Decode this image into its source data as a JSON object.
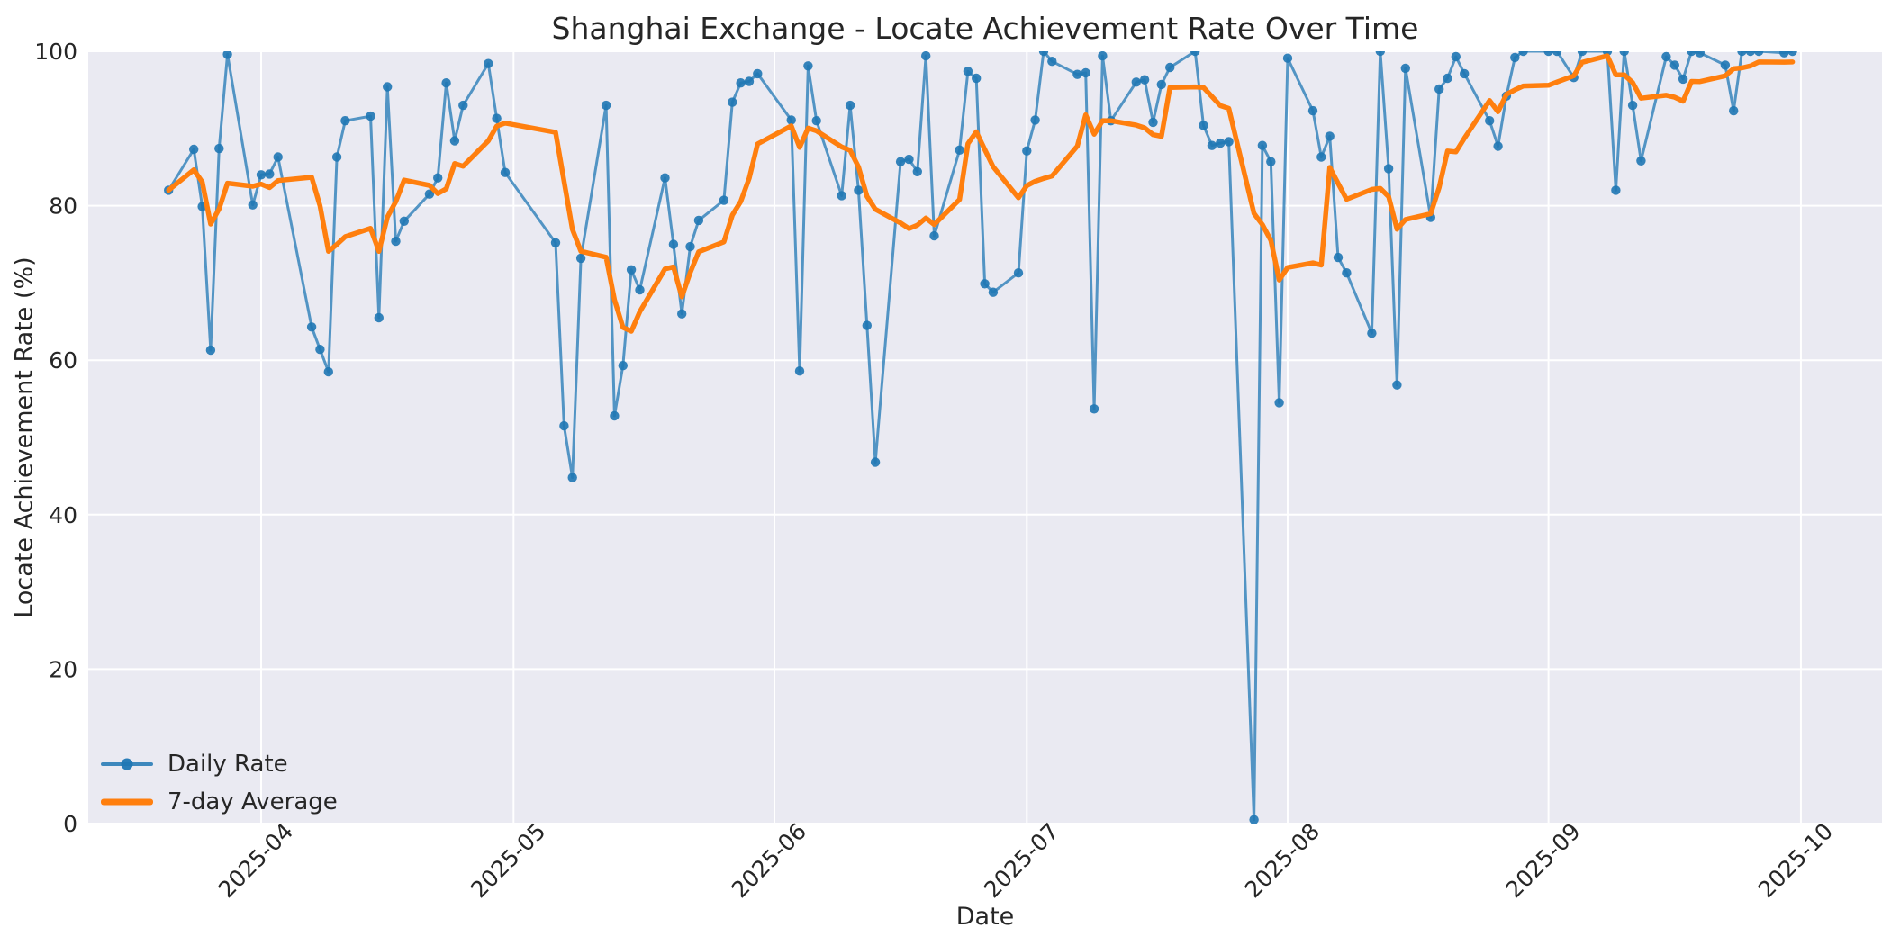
{
  "chart_data": {
    "type": "line",
    "title": "Shanghai Exchange - Locate Achievement Rate Over Time",
    "xlabel": "Date",
    "ylabel": "Locate Achievement Rate (%)",
    "ylim": [
      0,
      100
    ],
    "yticks": [
      0,
      20,
      40,
      60,
      80,
      100
    ],
    "xticks": [
      {
        "label": "2025-04",
        "date": "2025-04-01"
      },
      {
        "label": "2025-05",
        "date": "2025-05-01"
      },
      {
        "label": "2025-06",
        "date": "2025-06-01"
      },
      {
        "label": "2025-07",
        "date": "2025-07-01"
      },
      {
        "label": "2025-08",
        "date": "2025-08-01"
      },
      {
        "label": "2025-09",
        "date": "2025-09-01"
      },
      {
        "label": "2025-10",
        "date": "2025-10-01"
      }
    ],
    "grid": true,
    "legend_position": "lower-left",
    "background": {
      "figure": "#ffffff",
      "axes": "#eaeaf2",
      "grid": "#ffffff",
      "text": "#262626"
    },
    "series": [
      {
        "name": "Daily Rate",
        "color": "#1f77b4",
        "alpha": 0.8,
        "style": "line+markers",
        "dates": [
          "2025-03-21",
          "2025-03-24",
          "2025-03-25",
          "2025-03-26",
          "2025-03-27",
          "2025-03-28",
          "2025-03-31",
          "2025-04-01",
          "2025-04-02",
          "2025-04-03",
          "2025-04-07",
          "2025-04-08",
          "2025-04-09",
          "2025-04-10",
          "2025-04-11",
          "2025-04-14",
          "2025-04-15",
          "2025-04-16",
          "2025-04-17",
          "2025-04-18",
          "2025-04-21",
          "2025-04-22",
          "2025-04-23",
          "2025-04-24",
          "2025-04-25",
          "2025-04-28",
          "2025-04-29",
          "2025-04-30",
          "2025-05-06",
          "2025-05-07",
          "2025-05-08",
          "2025-05-09",
          "2025-05-12",
          "2025-05-13",
          "2025-05-14",
          "2025-05-15",
          "2025-05-16",
          "2025-05-19",
          "2025-05-20",
          "2025-05-21",
          "2025-05-22",
          "2025-05-23",
          "2025-05-26",
          "2025-05-27",
          "2025-05-28",
          "2025-05-29",
          "2025-05-30",
          "2025-06-03",
          "2025-06-04",
          "2025-06-05",
          "2025-06-06",
          "2025-06-09",
          "2025-06-10",
          "2025-06-11",
          "2025-06-12",
          "2025-06-13",
          "2025-06-16",
          "2025-06-17",
          "2025-06-18",
          "2025-06-19",
          "2025-06-20",
          "2025-06-23",
          "2025-06-24",
          "2025-06-25",
          "2025-06-26",
          "2025-06-27",
          "2025-06-30",
          "2025-07-01",
          "2025-07-02",
          "2025-07-03",
          "2025-07-04",
          "2025-07-07",
          "2025-07-08",
          "2025-07-09",
          "2025-07-10",
          "2025-07-11",
          "2025-07-14",
          "2025-07-15",
          "2025-07-16",
          "2025-07-17",
          "2025-07-18",
          "2025-07-21",
          "2025-07-22",
          "2025-07-23",
          "2025-07-24",
          "2025-07-25",
          "2025-07-28",
          "2025-07-29",
          "2025-07-30",
          "2025-07-31",
          "2025-08-01",
          "2025-08-04",
          "2025-08-05",
          "2025-08-06",
          "2025-08-07",
          "2025-08-08",
          "2025-08-11",
          "2025-08-12",
          "2025-08-13",
          "2025-08-14",
          "2025-08-15",
          "2025-08-18",
          "2025-08-19",
          "2025-08-20",
          "2025-08-21",
          "2025-08-22",
          "2025-08-25",
          "2025-08-26",
          "2025-08-27",
          "2025-08-28",
          "2025-08-29",
          "2025-09-01",
          "2025-09-02",
          "2025-09-04",
          "2025-09-05",
          "2025-09-08",
          "2025-09-09",
          "2025-09-10",
          "2025-09-11",
          "2025-09-12",
          "2025-09-15",
          "2025-09-16",
          "2025-09-17",
          "2025-09-18",
          "2025-09-19",
          "2025-09-22",
          "2025-09-23",
          "2025-09-24",
          "2025-09-25",
          "2025-09-26",
          "2025-09-29",
          "2025-09-30"
        ],
        "values": [
          82.0,
          87.3,
          79.9,
          61.3,
          87.4,
          99.6,
          80.1,
          84.0,
          84.1,
          86.3,
          64.3,
          61.4,
          58.5,
          86.3,
          91.0,
          91.6,
          65.5,
          95.4,
          75.4,
          78.0,
          81.5,
          83.6,
          95.9,
          88.4,
          93.0,
          98.4,
          91.3,
          84.3,
          75.2,
          51.5,
          44.8,
          73.2,
          93.0,
          52.8,
          59.3,
          71.7,
          69.1,
          83.6,
          75.0,
          66.0,
          74.7,
          78.1,
          80.7,
          93.4,
          95.9,
          96.1,
          97.1,
          91.1,
          58.6,
          98.1,
          91.0,
          81.3,
          93.0,
          82.0,
          64.5,
          46.8,
          85.7,
          86.0,
          84.4,
          99.4,
          76.1,
          87.2,
          97.4,
          96.5,
          69.9,
          68.8,
          71.3,
          87.1,
          91.1,
          100.0,
          98.7,
          97.0,
          97.2,
          53.7,
          99.4,
          91.0,
          96.0,
          96.3,
          90.8,
          95.7,
          97.9,
          100.0,
          90.4,
          87.8,
          88.1,
          88.3,
          0.5,
          87.8,
          85.7,
          54.5,
          99.1,
          92.3,
          86.3,
          89.0,
          73.3,
          71.3,
          63.5,
          100.0,
          84.8,
          56.8,
          97.8,
          78.5,
          95.1,
          96.5,
          99.3,
          97.1,
          91.0,
          87.7,
          94.2,
          99.2,
          100.0,
          100.0,
          100.0,
          96.6,
          100.0,
          100.0,
          82.0,
          100.0,
          93.0,
          85.8,
          99.3,
          98.2,
          96.4,
          100.0,
          99.8,
          98.2,
          92.3,
          100.0,
          100.0,
          100.0,
          99.8,
          100.0
        ]
      },
      {
        "name": "7-day Average",
        "color": "#ff7f0e",
        "alpha": 1.0,
        "style": "line",
        "derived": "rolling_mean_of_daily_rate_window_7_min_periods_1"
      }
    ]
  },
  "legend": {
    "daily_label": "Daily Rate",
    "avg_label": "7-day Average"
  }
}
